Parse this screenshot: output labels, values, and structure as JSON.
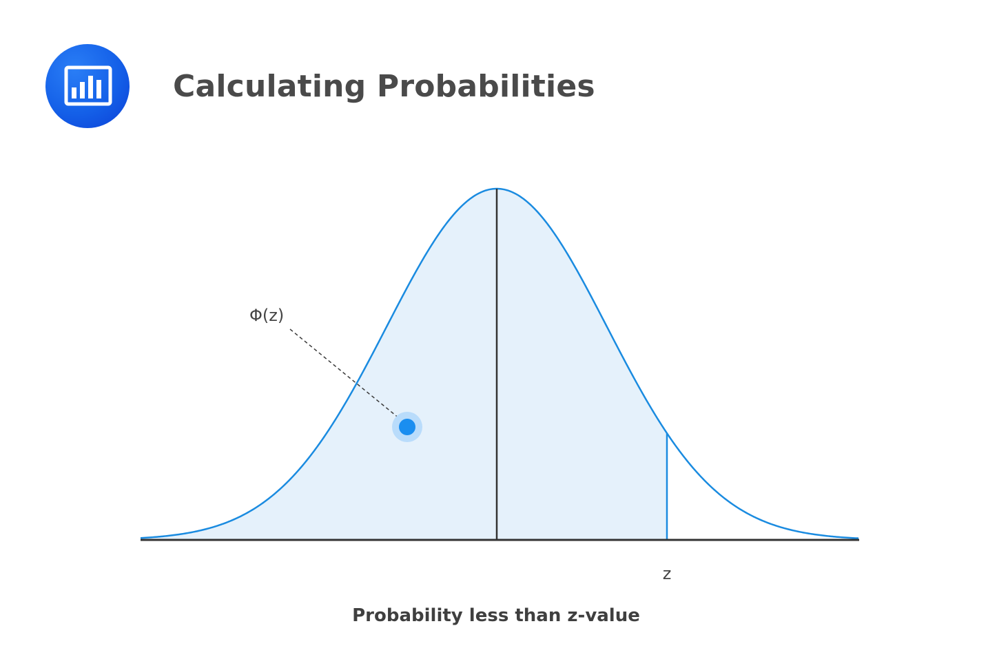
{
  "header": {
    "icon": "bar-chart-icon",
    "title": "Calculating Probabilities",
    "badge_color": "#1562e8"
  },
  "diagram": {
    "curve": "standard-normal-density",
    "shaded_region": "left of z",
    "annotation_label": "Φ(z)",
    "z_label": "z",
    "caption": "Probability less than z-value",
    "colors": {
      "curve": "#1a8be0",
      "fill": "#e5f1fb",
      "axis": "#333333",
      "marker": "#1a8ef0",
      "marker_halo": "#b9dcfb"
    }
  }
}
